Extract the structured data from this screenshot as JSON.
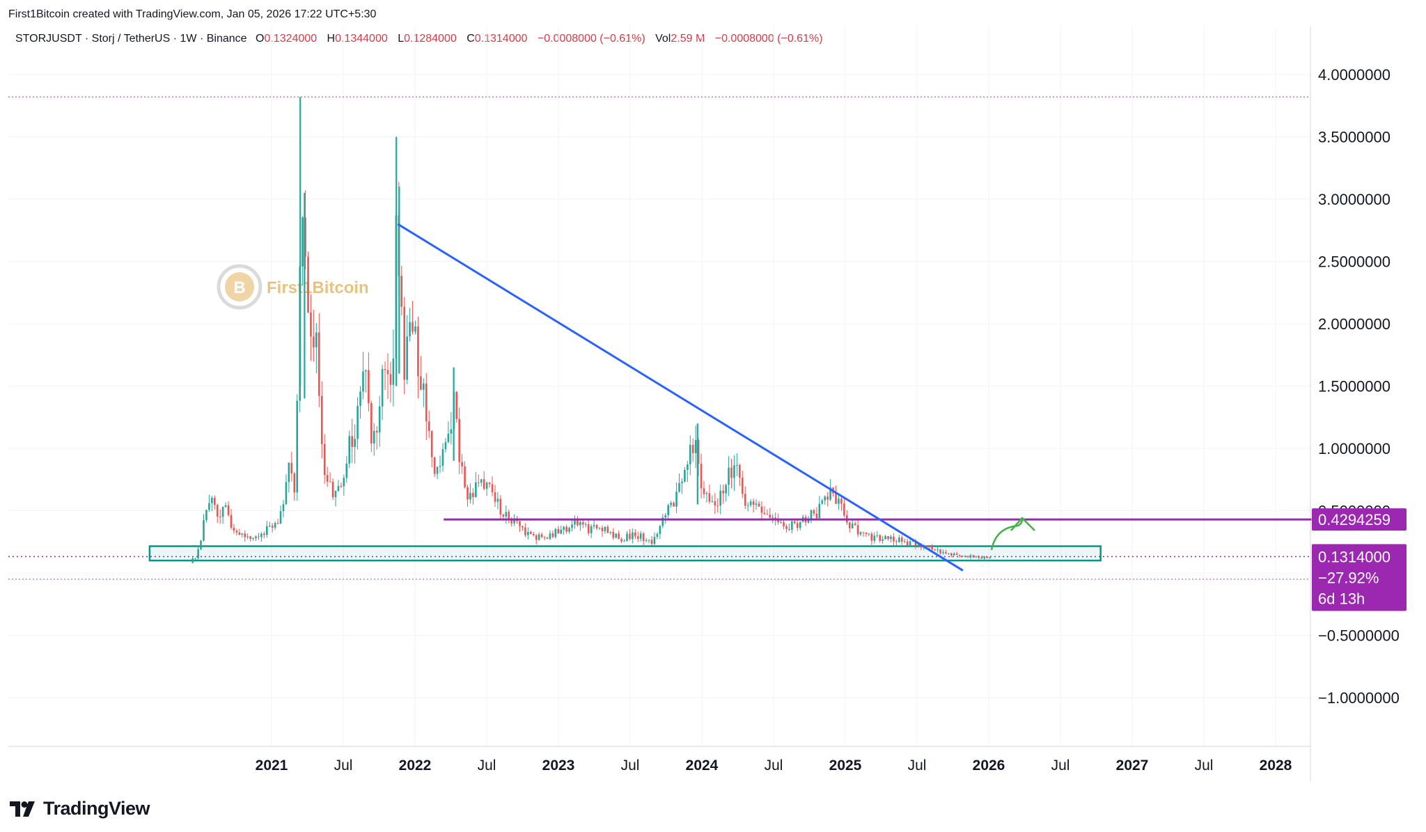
{
  "header": {
    "credit": "First1Bitcoin created with TradingView.com, Jan 05, 2026 17:22 UTC+5:30",
    "symbol": "STORJUSDT · Storj / TetherUS · 1W · Binance",
    "o_label": "O",
    "o_value": "0.1324000",
    "h_label": "H",
    "h_value": "0.1344000",
    "l_label": "L",
    "l_value": "0.1284000",
    "c_label": "C",
    "c_value": "0.1314000",
    "change": "−0.0008000 (−0.61%)",
    "vol_label": "Vol",
    "vol_value": "2.59 M",
    "vol_change": "−0.0008000 (−0.61%)"
  },
  "watermark": "First1Bitcoin",
  "brand": "TradingView",
  "price_tags": {
    "resistance": "0.4294259",
    "current": "0.1314000",
    "change_pct": "−27.92%",
    "countdown": "6d 13h"
  },
  "colors": {
    "up": "#26a69a",
    "down": "#ef5350",
    "trendline": "#2962ff",
    "resistance": "#9c27b0",
    "support_box": "#009688",
    "tag": "#9c27b0"
  },
  "chart_data": {
    "type": "candlestick",
    "y_ticks": [
      4.0,
      3.5,
      3.0,
      2.5,
      2.0,
      1.5,
      1.0,
      0.5,
      -0.5,
      -1.0
    ],
    "y_tick_labels": [
      "4.0000000",
      "3.5000000",
      "3.0000000",
      "2.5000000",
      "2.0000000",
      "1.5000000",
      "1.0000000",
      "0.5000000",
      "−0.5000000",
      "−1.0000000"
    ],
    "ylim": [
      -1.4,
      4.3
    ],
    "x_ticks": [
      {
        "label": "2021",
        "date": 2021.0,
        "bold": true
      },
      {
        "label": "Jul",
        "date": 2021.5,
        "bold": false
      },
      {
        "label": "2022",
        "date": 2022.0,
        "bold": true
      },
      {
        "label": "Jul",
        "date": 2022.5,
        "bold": false
      },
      {
        "label": "2023",
        "date": 2023.0,
        "bold": true
      },
      {
        "label": "Jul",
        "date": 2023.5,
        "bold": false
      },
      {
        "label": "2024",
        "date": 2024.0,
        "bold": true
      },
      {
        "label": "Jul",
        "date": 2024.5,
        "bold": false
      },
      {
        "label": "2025",
        "date": 2025.0,
        "bold": true
      },
      {
        "label": "Jul",
        "date": 2025.5,
        "bold": false
      },
      {
        "label": "2026",
        "date": 2026.0,
        "bold": true
      },
      {
        "label": "Jul",
        "date": 2026.5,
        "bold": false
      },
      {
        "label": "2027",
        "date": 2027.0,
        "bold": true
      },
      {
        "label": "Jul",
        "date": 2027.5,
        "bold": false
      },
      {
        "label": "2028",
        "date": 2028.0,
        "bold": true
      }
    ],
    "price_path": [
      [
        2020.45,
        0.08
      ],
      [
        2020.5,
        0.22
      ],
      [
        2020.56,
        0.62
      ],
      [
        2020.62,
        0.45
      ],
      [
        2020.68,
        0.5
      ],
      [
        2020.74,
        0.33
      ],
      [
        2020.85,
        0.3
      ],
      [
        2020.95,
        0.33
      ],
      [
        2021.05,
        0.42
      ],
      [
        2021.12,
        0.85
      ],
      [
        2021.17,
        0.62
      ],
      [
        2021.2,
        2.9
      ],
      [
        2021.23,
        2.5
      ],
      [
        2021.27,
        1.7
      ],
      [
        2021.31,
        2.1
      ],
      [
        2021.34,
        1.1
      ],
      [
        2021.38,
        0.75
      ],
      [
        2021.45,
        0.62
      ],
      [
        2021.52,
        0.9
      ],
      [
        2021.6,
        1.3
      ],
      [
        2021.65,
        1.65
      ],
      [
        2021.7,
        0.95
      ],
      [
        2021.76,
        1.35
      ],
      [
        2021.8,
        1.85
      ],
      [
        2021.84,
        1.55
      ],
      [
        2021.87,
        2.75
      ],
      [
        2021.92,
        1.7
      ],
      [
        2021.98,
        2.0
      ],
      [
        2022.05,
        1.45
      ],
      [
        2022.1,
        1.1
      ],
      [
        2022.15,
        0.8
      ],
      [
        2022.22,
        1.0
      ],
      [
        2022.27,
        1.45
      ],
      [
        2022.32,
        0.85
      ],
      [
        2022.38,
        0.6
      ],
      [
        2022.45,
        0.7
      ],
      [
        2022.52,
        0.65
      ],
      [
        2022.6,
        0.5
      ],
      [
        2022.7,
        0.42
      ],
      [
        2022.8,
        0.3
      ],
      [
        2022.9,
        0.28
      ],
      [
        2023.0,
        0.33
      ],
      [
        2023.1,
        0.4
      ],
      [
        2023.2,
        0.35
      ],
      [
        2023.3,
        0.38
      ],
      [
        2023.42,
        0.28
      ],
      [
        2023.55,
        0.3
      ],
      [
        2023.65,
        0.25
      ],
      [
        2023.72,
        0.42
      ],
      [
        2023.8,
        0.55
      ],
      [
        2023.88,
        0.8
      ],
      [
        2023.95,
        1.05
      ],
      [
        2024.0,
        0.7
      ],
      [
        2024.08,
        0.55
      ],
      [
        2024.15,
        0.68
      ],
      [
        2024.22,
        0.88
      ],
      [
        2024.3,
        0.6
      ],
      [
        2024.4,
        0.48
      ],
      [
        2024.5,
        0.44
      ],
      [
        2024.6,
        0.38
      ],
      [
        2024.7,
        0.42
      ],
      [
        2024.8,
        0.48
      ],
      [
        2024.9,
        0.66
      ],
      [
        2024.96,
        0.55
      ],
      [
        2025.03,
        0.4
      ],
      [
        2025.12,
        0.3
      ],
      [
        2025.25,
        0.28
      ],
      [
        2025.4,
        0.26
      ],
      [
        2025.52,
        0.22
      ],
      [
        2025.65,
        0.18
      ],
      [
        2025.8,
        0.14
      ],
      [
        2025.9,
        0.13
      ],
      [
        2026.01,
        0.13
      ]
    ],
    "spikes": [
      {
        "x": 2021.2,
        "high": 3.82,
        "low": 1.5
      },
      {
        "x": 2021.23,
        "high": 3.05,
        "low": 1.4
      },
      {
        "x": 2021.87,
        "high": 3.5,
        "low": 1.5
      },
      {
        "x": 2021.89,
        "high": 3.1,
        "low": 1.6
      },
      {
        "x": 2023.97,
        "high": 1.2,
        "low": 0.55
      },
      {
        "x": 2022.27,
        "high": 1.65,
        "low": 0.9
      }
    ],
    "trendline": {
      "from": [
        2021.88,
        2.8
      ],
      "to": [
        2025.82,
        0.02
      ]
    },
    "resistance_line": {
      "from": 2022.2,
      "to": 2028.25,
      "value": 0.4294259
    },
    "support_box": {
      "from": 2020.15,
      "to": 2026.78,
      "top": 0.215,
      "bottom": 0.1
    },
    "ath_line": 3.82,
    "atl_line": -0.05,
    "current_price_line": 0.1314,
    "annotation": "up-arrow"
  }
}
